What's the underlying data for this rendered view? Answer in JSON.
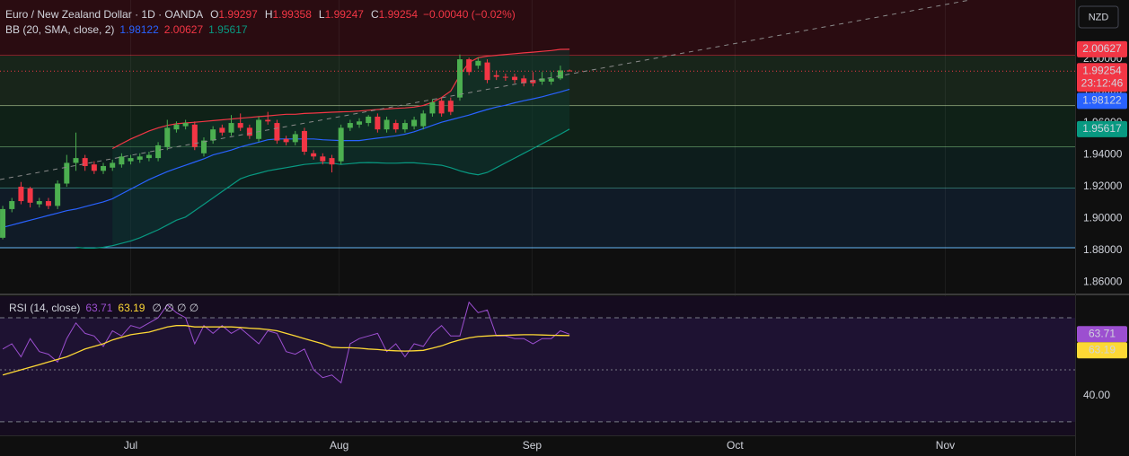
{
  "currency": "NZD",
  "chart_data": [
    {
      "type": "candlestick",
      "title": "Euro / New Zealand Dollar · 1D · OANDA",
      "ohlc_labels": [
        "O",
        "H",
        "L",
        "C"
      ],
      "change": "−0.00040 (−0.02%)",
      "countdown": "23:12:46",
      "indicator_label": "BB (20, SMA, close, 2)",
      "up_color": "#4caf50",
      "down_color": "#f23645",
      "x": [
        0,
        1,
        2,
        3,
        4,
        5,
        6,
        7,
        8,
        9,
        10,
        11,
        12,
        13,
        14,
        15,
        16,
        17,
        18,
        19,
        20,
        21,
        22,
        23,
        24,
        25,
        26,
        27,
        28,
        29,
        30,
        31,
        32,
        33,
        34,
        35,
        36,
        37,
        38,
        39,
        40,
        41,
        42,
        43,
        44,
        45,
        46,
        47,
        48,
        49,
        50,
        51,
        52,
        53,
        54,
        55,
        56,
        57,
        58,
        59,
        60,
        61,
        62
      ],
      "xlim": [
        -0.3,
        117.3
      ],
      "xticks": [
        {
          "value": 14,
          "label": "Jul"
        },
        {
          "value": 36.8,
          "label": "Aug"
        },
        {
          "value": 57.9,
          "label": "Sep"
        },
        {
          "value": 80.1,
          "label": "Oct"
        },
        {
          "value": 103.1,
          "label": "Nov"
        }
      ],
      "xgrid": true,
      "ylim": [
        1.853,
        2.0372
      ],
      "yticks": [
        {
          "value": 2.0,
          "label": "2.00000"
        },
        {
          "value": 1.98,
          "label": "1.98000"
        },
        {
          "value": 1.96,
          "label": "1.96000"
        },
        {
          "value": 1.94,
          "label": "1.94000"
        },
        {
          "value": 1.92,
          "label": "1.92000"
        },
        {
          "value": 1.9,
          "label": "1.90000"
        },
        {
          "value": 1.88,
          "label": "1.88000"
        },
        {
          "value": 1.86,
          "label": "1.86000"
        }
      ],
      "open": [
        1.888,
        1.906,
        1.92,
        1.919,
        1.909,
        1.911,
        1.908,
        1.922,
        1.935,
        1.938,
        1.934,
        1.93,
        1.932,
        1.934,
        1.936,
        1.937,
        1.938,
        1.938,
        1.945,
        1.956,
        1.958,
        1.959,
        1.941,
        1.949,
        1.957,
        1.954,
        1.96,
        1.957,
        1.95,
        1.962,
        1.96,
        1.95,
        1.948,
        1.955,
        1.941,
        1.939,
        1.938,
        1.936,
        1.957,
        1.959,
        1.96,
        1.964,
        1.956,
        1.96,
        1.956,
        1.958,
        1.958,
        1.966,
        1.974,
        1.974,
        1.976,
        2.0,
        1.996,
        1.998,
        1.99,
        1.989,
        1.989,
        1.988,
        1.987,
        1.986,
        1.986,
        1.988,
        1.99297
      ],
      "high": [
        1.908,
        1.913,
        1.923,
        1.92,
        1.913,
        1.913,
        1.924,
        1.94,
        1.954,
        1.94,
        1.936,
        1.935,
        1.937,
        1.941,
        1.94,
        1.941,
        1.942,
        1.948,
        1.962,
        1.961,
        1.962,
        1.961,
        1.951,
        1.958,
        1.959,
        1.965,
        1.966,
        1.959,
        1.964,
        1.967,
        1.962,
        1.952,
        1.955,
        1.957,
        1.943,
        1.941,
        1.94,
        1.959,
        1.962,
        1.963,
        1.965,
        1.966,
        1.964,
        1.962,
        1.962,
        1.964,
        1.968,
        1.975,
        1.976,
        1.976,
        2.003,
        2.001,
        2.001,
        2.0,
        1.993,
        1.991,
        1.991,
        1.99,
        1.992,
        1.992,
        1.992,
        1.996,
        1.99358
      ],
      "low": [
        1.887,
        1.904,
        1.909,
        1.907,
        1.907,
        1.906,
        1.906,
        1.92,
        1.93,
        1.93,
        1.928,
        1.928,
        1.93,
        1.932,
        1.934,
        1.935,
        1.936,
        1.936,
        1.943,
        1.954,
        1.956,
        1.943,
        1.939,
        1.947,
        1.952,
        1.952,
        1.955,
        1.95,
        1.948,
        1.959,
        1.947,
        1.946,
        1.946,
        1.94,
        1.937,
        1.934,
        1.929,
        1.934,
        1.955,
        1.957,
        1.958,
        1.954,
        1.954,
        1.954,
        1.954,
        1.956,
        1.956,
        1.964,
        1.964,
        1.965,
        1.974,
        1.99,
        1.994,
        1.985,
        1.987,
        1.9865,
        1.985,
        1.983,
        1.983,
        1.984,
        1.984,
        1.987,
        1.99247
      ],
      "close": [
        1.906,
        1.911,
        1.911,
        1.91,
        1.911,
        1.908,
        1.922,
        1.935,
        1.938,
        1.933,
        1.93,
        1.933,
        1.935,
        1.939,
        1.938,
        1.939,
        1.94,
        1.946,
        1.957,
        1.959,
        1.96,
        1.945,
        1.949,
        1.956,
        1.954,
        1.96,
        1.957,
        1.952,
        1.962,
        1.961,
        1.949,
        1.948,
        1.953,
        1.942,
        1.939,
        1.936,
        1.934,
        1.957,
        1.96,
        1.961,
        1.964,
        1.956,
        1.962,
        1.956,
        1.96,
        1.962,
        1.966,
        1.973,
        1.966,
        1.967,
        2.0,
        1.992,
        1.999,
        1.987,
        1.989,
        1.9885,
        1.987,
        1.985,
        1.985,
        1.988,
        1.988,
        1.993,
        1.99254
      ],
      "series": [
        {
          "color": "#2962ff",
          "values": [
            1.8945,
            1.896,
            1.8975,
            1.899,
            1.9005,
            1.902,
            1.9035,
            1.905,
            1.906,
            1.9075,
            1.909,
            1.9105,
            1.9125,
            1.9155,
            1.9185,
            1.9215,
            1.9245,
            1.927,
            1.9295,
            1.9315,
            1.9335,
            1.9355,
            1.9375,
            1.94,
            1.9415,
            1.943,
            1.945,
            1.9465,
            1.948,
            1.9495,
            1.95,
            1.95,
            1.95,
            1.95,
            1.95,
            1.9495,
            1.9492,
            1.949,
            1.949,
            1.949,
            1.9498,
            1.9505,
            1.9512,
            1.952,
            1.953,
            1.9545,
            1.9565,
            1.9585,
            1.9605,
            1.962,
            1.9635,
            1.965,
            1.9668,
            1.9685,
            1.97,
            1.9712,
            1.9727,
            1.974,
            1.9752,
            1.9765,
            1.978,
            1.9795,
            1.98122
          ]
        },
        {
          "color": "#f23645",
          "values": [
            null,
            null,
            null,
            null,
            null,
            null,
            null,
            null,
            null,
            null,
            null,
            null,
            1.944,
            1.947,
            1.95,
            1.9525,
            1.955,
            1.957,
            1.9585,
            1.9595,
            1.96,
            1.9605,
            1.961,
            1.9615,
            1.962,
            1.9625,
            1.963,
            1.9635,
            1.964,
            1.9645,
            1.965,
            1.9655,
            1.9655,
            1.966,
            1.9662,
            1.9665,
            1.9668,
            1.967,
            1.9672,
            1.9675,
            1.968,
            1.9685,
            1.9688,
            1.9692,
            1.9695,
            1.97,
            1.971,
            1.973,
            1.976,
            1.98,
            1.99,
            1.998,
            2.001,
            2.002,
            2.0025,
            2.003,
            2.0035,
            2.004,
            2.0045,
            2.005,
            2.0055,
            2.0062,
            2.00627
          ]
        },
        {
          "color": "#089981",
          "values": [
            null,
            null,
            null,
            null,
            null,
            null,
            null,
            null,
            1.882,
            1.8815,
            1.8815,
            1.882,
            1.883,
            1.8845,
            1.886,
            1.888,
            1.8905,
            1.893,
            1.896,
            1.899,
            1.901,
            1.905,
            1.909,
            1.913,
            1.917,
            1.921,
            1.925,
            1.927,
            1.9285,
            1.93,
            1.931,
            1.932,
            1.933,
            1.934,
            1.9345,
            1.935,
            1.9348,
            1.934,
            1.9345,
            1.935,
            1.9352,
            1.935,
            1.9348,
            1.9348,
            1.935,
            1.935,
            1.9345,
            1.934,
            1.9335,
            1.932,
            1.93,
            1.9285,
            1.9275,
            1.929,
            1.932,
            1.935,
            1.938,
            1.941,
            1.944,
            1.947,
            1.95,
            1.953,
            1.95617
          ]
        }
      ],
      "band_fill": "#0d3a30",
      "zones": [
        {
          "price": 2.0023,
          "line": "#f23645",
          "fill": "#2a0c11"
        },
        {
          "price": 1.9707,
          "line": "#c5e1a5",
          "fill": "#18251a"
        },
        {
          "price": 1.9448,
          "line": "#81c784",
          "fill": "#0f2117"
        },
        {
          "price": 1.9189,
          "line": "#4db6ac",
          "fill": "#0d1d1c"
        },
        {
          "price": 1.8817,
          "line": "#64b5f6",
          "fill": "#101b27"
        }
      ]
    },
    {
      "type": "line",
      "title": "RSI (14, close)",
      "extra_legend": "∅ ∅ ∅ ∅",
      "x": [
        0,
        1,
        2,
        3,
        4,
        5,
        6,
        7,
        8,
        9,
        10,
        11,
        12,
        13,
        14,
        15,
        16,
        17,
        18,
        19,
        20,
        21,
        22,
        23,
        24,
        25,
        26,
        27,
        28,
        29,
        30,
        31,
        32,
        33,
        34,
        35,
        36,
        37,
        38,
        39,
        40,
        41,
        42,
        43,
        44,
        45,
        46,
        47,
        48,
        49,
        50,
        51,
        52,
        53,
        54,
        55,
        56,
        57,
        58,
        59,
        60,
        61,
        62
      ],
      "xlim": [
        -0.3,
        117.3
      ],
      "ylim": [
        24.8,
        78.3
      ],
      "yticks": [
        {
          "value": 40,
          "label": "40.00"
        }
      ],
      "levels": [
        70,
        50,
        30
      ],
      "band_fill": "#22163a",
      "series": [
        {
          "color": "#9c4fd0",
          "values": [
            58,
            60,
            55,
            62,
            57,
            56,
            53,
            62,
            68,
            64,
            63,
            59,
            65,
            63,
            67,
            66,
            68,
            70,
            75,
            72,
            70,
            60,
            67,
            64,
            67,
            64,
            66,
            63,
            60,
            65,
            64,
            57,
            56,
            58,
            50,
            47,
            48,
            45,
            60,
            62,
            63,
            64,
            57,
            60,
            55,
            60,
            59,
            64,
            67,
            63,
            63,
            76,
            72,
            73,
            63,
            63,
            62,
            62,
            60,
            62,
            62,
            65,
            63.71
          ]
        },
        {
          "color": "#fdd835",
          "values": [
            48,
            49,
            50,
            51,
            52,
            53,
            54,
            55,
            56.5,
            58,
            59,
            60,
            61.5,
            62.5,
            63.5,
            64,
            64.5,
            65.5,
            66.5,
            67,
            67,
            66.5,
            66.5,
            66.5,
            66.5,
            66.5,
            66.3,
            66,
            65.8,
            65.5,
            65,
            64,
            63,
            62,
            61,
            60,
            58.7,
            58.5,
            58.5,
            58.3,
            58,
            57.8,
            57.5,
            57.3,
            57.2,
            57.3,
            57.5,
            58.3,
            59.2,
            60.5,
            61.5,
            62.3,
            62.8,
            63,
            63.2,
            63.3,
            63.4,
            63.5,
            63.5,
            63.4,
            63.3,
            63.2,
            63.19
          ]
        }
      ]
    }
  ]
}
